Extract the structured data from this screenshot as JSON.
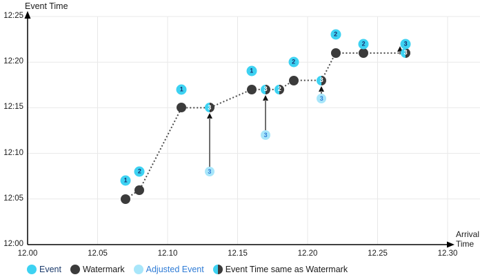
{
  "figure": {
    "y_axis_title": "Event Time",
    "x_axis_title_line1": "Arrival",
    "x_axis_title_line2": "Time"
  },
  "legend": {
    "items": [
      {
        "id": "event",
        "label": "Event"
      },
      {
        "id": "watermark",
        "label": "Watermark"
      },
      {
        "id": "adjusted",
        "label": "Adjusted Event"
      },
      {
        "id": "same",
        "label": "Event Time same as Watermark"
      }
    ]
  },
  "colors": {
    "event": "#3dd2f2",
    "watermark": "#3b3b3b",
    "adjusted": "#a8e6fa",
    "event_number_text": "#172f6e",
    "adjusted_number_text": "#2f7cd6",
    "half_number_text": "#ffffff",
    "legend_event_text": "#1b3a6b",
    "legend_adjusted_text": "#2f7cd6",
    "legend_dark_text": "#1a1a1a",
    "grid": "#e8e8e8",
    "axis": "#000000",
    "dotted_line": "#4a4a4a",
    "arrow_stem": "#6e6e6e",
    "arrow_head": "#111111"
  },
  "chart_data": {
    "type": "scatter",
    "title": "",
    "x_axis": {
      "label": "Arrival Time",
      "ticks": [
        "12.00",
        "12.05",
        "12.10",
        "12.15",
        "12.20",
        "12.25",
        "12.30"
      ],
      "range": [
        12.0,
        12.3
      ],
      "grid": true
    },
    "y_axis": {
      "label": "Event Time",
      "ticks": [
        "12:00",
        "12:05",
        "12:10",
        "12:15",
        "12:20",
        "12:25"
      ],
      "range": [
        "12:00",
        "12:25"
      ],
      "grid": true
    },
    "events": [
      {
        "label": "1",
        "arrival": 12.07,
        "event_time": "12:07"
      },
      {
        "label": "2",
        "arrival": 12.08,
        "event_time": "12:08"
      },
      {
        "label": "1",
        "arrival": 12.11,
        "event_time": "12:17"
      },
      {
        "label": "1",
        "arrival": 12.16,
        "event_time": "12:19"
      },
      {
        "label": "2",
        "arrival": 12.19,
        "event_time": "12:20"
      },
      {
        "label": "2",
        "arrival": 12.22,
        "event_time": "12:23"
      },
      {
        "label": "2",
        "arrival": 12.24,
        "event_time": "12:22"
      },
      {
        "label": "3",
        "arrival": 12.27,
        "event_time": "12:22"
      }
    ],
    "watermarks": [
      {
        "arrival": 12.07,
        "value": "12:05"
      },
      {
        "arrival": 12.08,
        "value": "12:06"
      },
      {
        "arrival": 12.11,
        "value": "12:15"
      },
      {
        "arrival": 12.16,
        "value": "12:17"
      },
      {
        "arrival": 12.19,
        "value": "12:18"
      },
      {
        "arrival": 12.22,
        "value": "12:21"
      },
      {
        "arrival": 12.24,
        "value": "12:21"
      }
    ],
    "events_at_watermark": [
      {
        "label": "3",
        "arrival": 12.13,
        "value": "12:15"
      },
      {
        "label": "3",
        "arrival": 12.17,
        "value": "12:17"
      },
      {
        "label": "2",
        "arrival": 12.18,
        "value": "12:17"
      },
      {
        "label": "3",
        "arrival": 12.21,
        "value": "12:18"
      },
      {
        "label": "3",
        "arrival": 12.27,
        "value": "12:21"
      }
    ],
    "adjusted_events": [
      {
        "label": "3",
        "arrival": 12.13,
        "original_event_time": "12:08",
        "adjusted_to": "12:15"
      },
      {
        "label": "3",
        "arrival": 12.17,
        "original_event_time": "12:12",
        "adjusted_to": "12:17"
      },
      {
        "label": "3",
        "arrival": 12.21,
        "original_event_time": "12:16",
        "adjusted_to": "12:18"
      }
    ],
    "extra_arrows": [
      {
        "x": 12.266,
        "from_min": 20.85,
        "to_min": 21.75,
        "style": "short"
      }
    ],
    "legend_position": "bottom"
  }
}
